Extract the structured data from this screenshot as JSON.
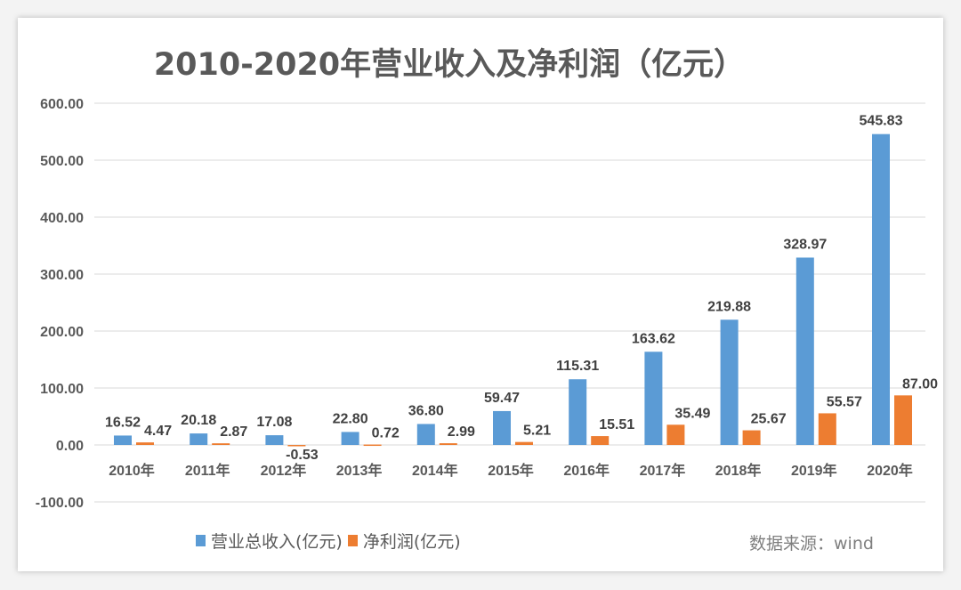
{
  "chart_data": {
    "type": "bar",
    "title": "2010-2020年营业收入及净利润（亿元）",
    "categories": [
      "2010年",
      "2011年",
      "2012年",
      "2013年",
      "2014年",
      "2015年",
      "2016年",
      "2017年",
      "2018年",
      "2019年",
      "2020年"
    ],
    "series": [
      {
        "name": "营业总收入(亿元)",
        "color": "#5b9bd5",
        "values": [
          16.52,
          20.18,
          17.08,
          22.8,
          36.8,
          59.47,
          115.31,
          163.62,
          219.88,
          328.97,
          545.83
        ]
      },
      {
        "name": "净利润(亿元)",
        "color": "#ed7d31",
        "values": [
          4.47,
          2.87,
          -0.53,
          0.72,
          2.99,
          5.21,
          15.51,
          35.49,
          25.67,
          55.57,
          87.0
        ]
      }
    ],
    "ylim": [
      -100,
      600
    ],
    "yticks": [
      "-100.00",
      "0.00",
      "100.00",
      "200.00",
      "300.00",
      "400.00",
      "500.00",
      "600.00"
    ],
    "grid": true,
    "legend": "bottom",
    "source": "数据来源：wind"
  }
}
